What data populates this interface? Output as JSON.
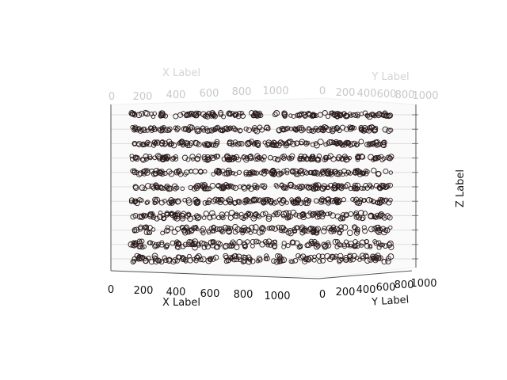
{
  "chart_data": {
    "type": "scatter",
    "projection": "3d",
    "xlabel": "X Label",
    "ylabel": "Y Label",
    "zlabel": "Z Label",
    "xticks": [
      "0",
      "200",
      "400",
      "600",
      "800",
      "1000"
    ],
    "yticks": [
      "0",
      "200",
      "400",
      "600",
      "800",
      "1000"
    ],
    "xlim": [
      0,
      1000
    ],
    "ylim": [
      0,
      1000
    ],
    "grid": true,
    "marker": "o",
    "marker_face": "none",
    "marker_edge_color": "#2a1a1a",
    "layers": 11
  }
}
